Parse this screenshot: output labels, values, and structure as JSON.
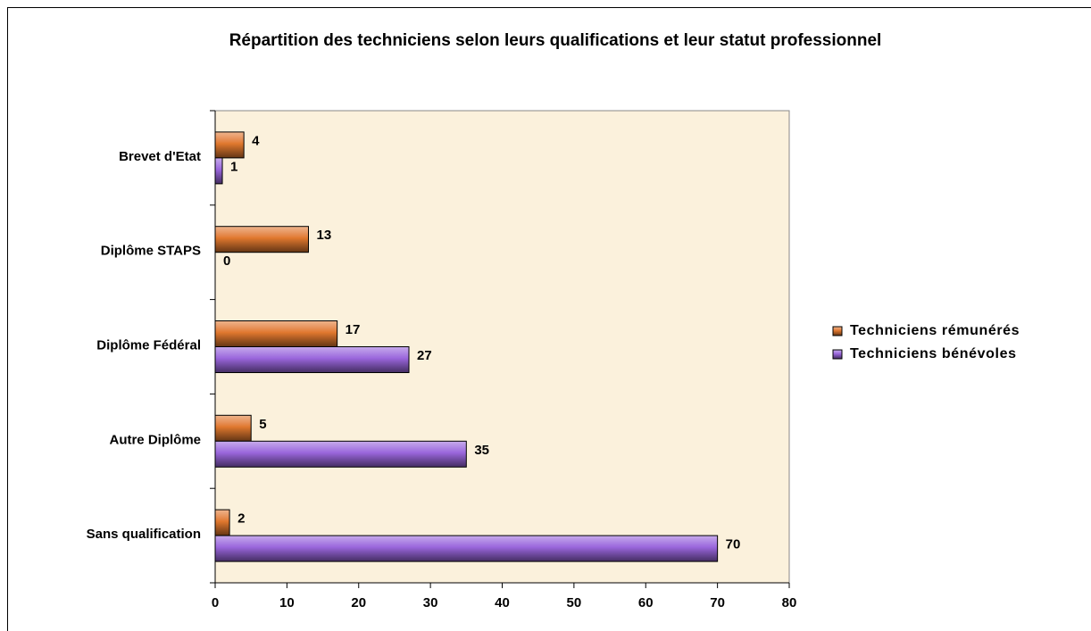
{
  "chart_data": {
    "type": "hbar",
    "title": "Répartition des techniciens selon leurs qualifications et leur statut professionnel",
    "categories": [
      "Brevet d'Etat",
      "Diplôme STAPS",
      "Diplôme Fédéral",
      "Autre Diplôme",
      "Sans qualification"
    ],
    "series": [
      {
        "name": "Techniciens rémunérés",
        "color": "#e0782e",
        "values": [
          4,
          13,
          17,
          5,
          2
        ]
      },
      {
        "name": "Techniciens bénévoles",
        "color": "#9a66dc",
        "values": [
          1,
          0,
          27,
          35,
          70
        ]
      }
    ],
    "xlim": [
      0,
      80
    ],
    "xticks": [
      0,
      10,
      20,
      30,
      40,
      50,
      60,
      70,
      80
    ],
    "legend": "right",
    "grid": false
  }
}
